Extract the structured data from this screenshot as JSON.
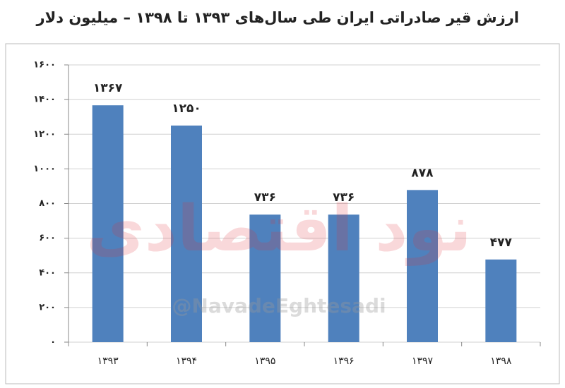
{
  "chart_data": {
    "type": "bar",
    "title": "ارزش قیر صادراتی ایران طی سال‌های ۱۳۹۳ تا ۱۳۹۸ – میلیون دلار",
    "categories": [
      "۱۳۹۳",
      "۱۳۹۴",
      "۱۳۹۵",
      "۱۳۹۶",
      "۱۳۹۷",
      "۱۳۹۸"
    ],
    "values": [
      1367,
      1250,
      736,
      736,
      878,
      477
    ],
    "value_labels": [
      "۱۳۶۷",
      "۱۲۵۰",
      "۷۳۶",
      "۷۳۶",
      "۸۷۸",
      "۴۷۷"
    ],
    "color": "#4f81bd",
    "ylim": [
      0,
      1600
    ],
    "yticks": [
      {
        "value": 0,
        "label": "۰"
      },
      {
        "value": 200,
        "label": "۲۰۰"
      },
      {
        "value": 400,
        "label": "۴۰۰"
      },
      {
        "value": 600,
        "label": "۶۰۰"
      },
      {
        "value": 800,
        "label": "۸۰۰"
      },
      {
        "value": 1000,
        "label": "۱۰۰۰"
      },
      {
        "value": 1200,
        "label": "۱۲۰۰"
      },
      {
        "value": 1400,
        "label": "۱۴۰۰"
      },
      {
        "value": 1600,
        "label": "۱۶۰۰"
      }
    ],
    "grid": true,
    "watermark": [
      "نود اقتصادی",
      "@NavadeEghtesadi"
    ]
  }
}
